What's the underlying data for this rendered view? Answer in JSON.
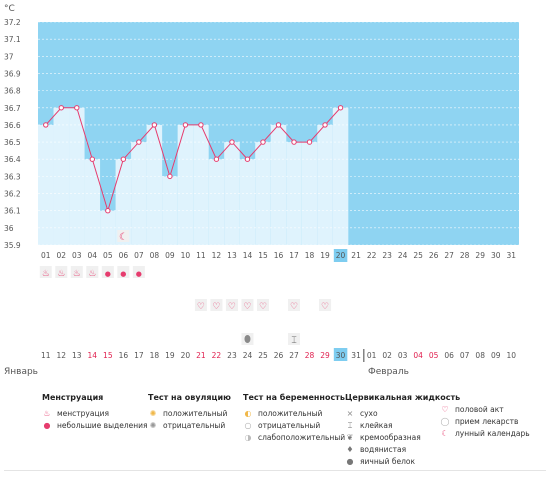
{
  "unit_label": "°C",
  "colors": {
    "plot_bg": "#8fd4f2",
    "bar": "#dff3fd",
    "line": "#e63c6e",
    "grid": "#ffffff",
    "text": "#555555",
    "red_text": "#e0204f",
    "highlight": "#7ecdf0",
    "icon_row_bg": "#f0f0f0"
  },
  "chart_data": {
    "type": "line",
    "title": "",
    "ylabel": "°C",
    "ylim": [
      35.9,
      37.2
    ],
    "y_ticks": [
      "37.2",
      "37.1",
      "37",
      "36.9",
      "36.8",
      "36.7",
      "36.6",
      "36.5",
      "36.4",
      "36.3",
      "36.2",
      "36.1",
      "36",
      "35.9"
    ],
    "x_cycle_days": [
      "01",
      "02",
      "03",
      "04",
      "05",
      "06",
      "07",
      "08",
      "09",
      "10",
      "11",
      "12",
      "13",
      "14",
      "15",
      "16",
      "17",
      "18",
      "19",
      "20",
      "21",
      "22",
      "23",
      "24",
      "25",
      "26",
      "27",
      "28",
      "29",
      "30",
      "31"
    ],
    "series": [
      {
        "values": [
          36.6,
          36.7,
          36.7,
          36.4,
          36.1,
          36.4,
          36.5,
          36.6,
          36.3,
          36.6,
          36.6,
          36.4,
          36.5,
          36.4,
          36.5,
          36.6,
          36.5,
          36.5,
          36.6,
          36.7
        ]
      }
    ],
    "highlight_day": "20",
    "grid": true
  },
  "date_row": {
    "days": [
      "11",
      "12",
      "13",
      "14",
      "15",
      "16",
      "17",
      "18",
      "19",
      "20",
      "21",
      "22",
      "23",
      "24",
      "25",
      "26",
      "27",
      "28",
      "29",
      "30",
      "31",
      "01",
      "02",
      "03",
      "04",
      "05",
      "06",
      "07",
      "08",
      "09",
      "10"
    ],
    "red_days": [
      "14",
      "15",
      "21",
      "22",
      "28",
      "29",
      "04",
      "05"
    ],
    "red_positions": [
      3,
      4,
      10,
      11,
      17,
      18,
      24,
      25
    ],
    "highlight_index": 19,
    "month_left": "Январь",
    "month_right": "Февраль"
  },
  "icon_rows": {
    "moon_day_index": 5,
    "menstruation": [
      "flow",
      "flow",
      "flow",
      "flow",
      "drop",
      "drop",
      "drop"
    ],
    "intercourse_days": [
      10,
      11,
      12,
      13,
      14,
      16,
      18
    ],
    "egg_white_day": 13,
    "sticky_day": 16
  },
  "legend": {
    "menstruation": {
      "title": "Менструация",
      "items": [
        "менструация",
        "небольшие выделения"
      ]
    },
    "ovulation": {
      "title": "Тест на овуляцию",
      "items": [
        "положительный",
        "отрицательный"
      ]
    },
    "pregnancy": {
      "title": "Тест на беременность",
      "items": [
        "положительный",
        "отрицательный",
        "слабоположительный"
      ]
    },
    "cervical": {
      "title": "Цервикальная жидкость",
      "items": [
        "сухо",
        "клейкая",
        "кремообразная",
        "водянистая",
        "яичный белок"
      ]
    },
    "other": {
      "items": [
        "половой акт",
        "прием лекарств",
        "лунный календарь"
      ]
    }
  }
}
